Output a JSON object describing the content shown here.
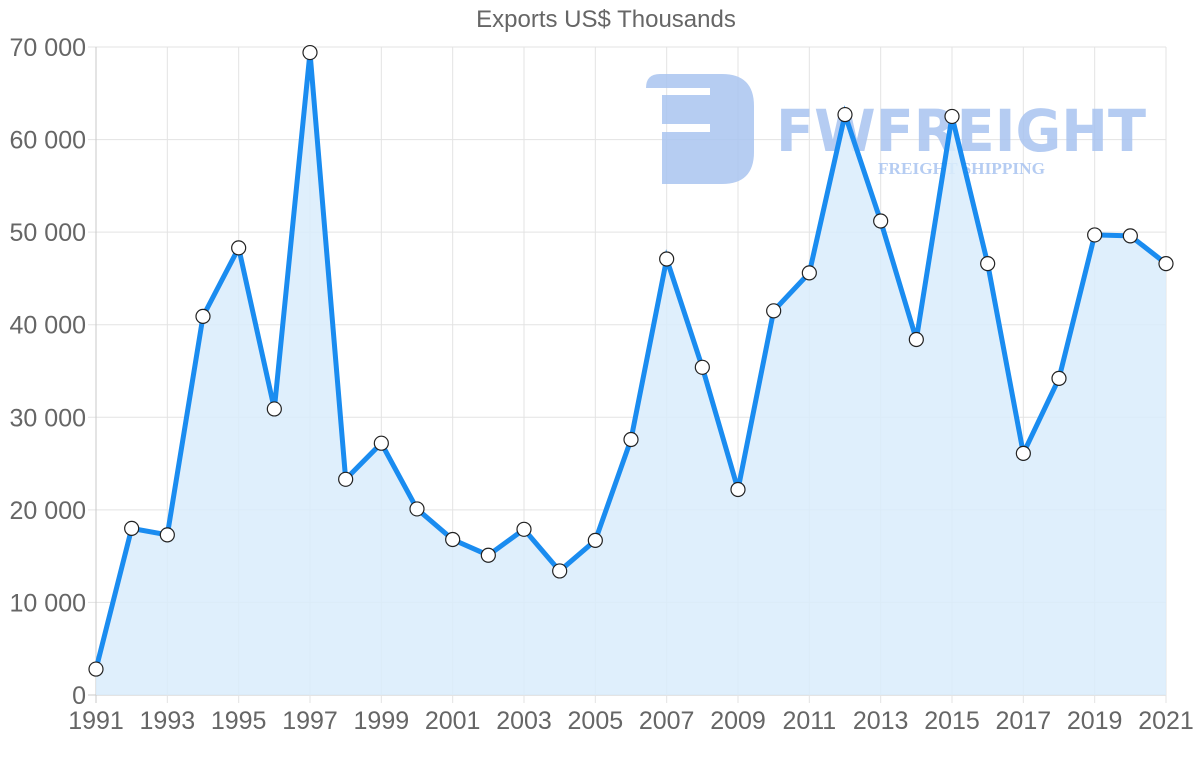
{
  "chart_data": {
    "type": "line",
    "title": "Exports US$ Thousands",
    "xlabel": "",
    "ylabel": "",
    "x": [
      1991,
      1992,
      1993,
      1994,
      1995,
      1996,
      1997,
      1998,
      1999,
      2000,
      2001,
      2002,
      2003,
      2004,
      2005,
      2006,
      2007,
      2008,
      2009,
      2010,
      2011,
      2012,
      2013,
      2014,
      2015,
      2016,
      2017,
      2018,
      2019,
      2020,
      2021
    ],
    "series": [
      {
        "name": "Exports US$ Thousands",
        "values": [
          2800,
          18000,
          17300,
          40900,
          48300,
          30900,
          69400,
          23300,
          27200,
          20100,
          16800,
          15100,
          17900,
          13400,
          16700,
          27600,
          47100,
          35400,
          22200,
          41500,
          45600,
          62700,
          51200,
          38400,
          62500,
          46600,
          26100,
          34200,
          49700,
          49600,
          46600
        ],
        "color": "#1a8cf0",
        "fill": "#d9ecfc"
      }
    ],
    "ylim": [
      0,
      70000
    ],
    "y_ticks": [
      "0",
      "10 000",
      "20 000",
      "30 000",
      "40 000",
      "50 000",
      "60 000",
      "70 000"
    ],
    "x_tick_labels": [
      "1991",
      "1993",
      "1995",
      "1997",
      "1999",
      "2001",
      "2003",
      "2005",
      "2007",
      "2009",
      "2011",
      "2013",
      "2015",
      "2017",
      "2019",
      "2021"
    ],
    "grid": true,
    "legend": "none",
    "filled_area": true,
    "markers": "white circles with dark outline"
  },
  "watermark": {
    "brand": "FWFREIGHT",
    "tagline": "FREIGHT SHIPPING",
    "color": "#a9c4f0"
  }
}
